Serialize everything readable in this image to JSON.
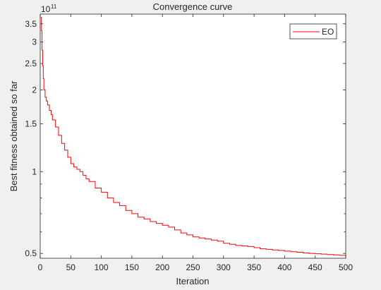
{
  "chart_data": {
    "type": "line",
    "title": "Convergence curve",
    "xlabel": "Iteration",
    "ylabel": "Best fitness obtained so far",
    "yscale": "log",
    "y_exponent_label": "10",
    "y_exponent_power": "11",
    "xlim": [
      0,
      500
    ],
    "ylim": [
      48000000000.0,
      380000000000.0
    ],
    "x_ticks": [
      0,
      50,
      100,
      150,
      200,
      250,
      300,
      350,
      400,
      450,
      500
    ],
    "x_tick_labels": [
      "0",
      "50",
      "100",
      "150",
      "200",
      "250",
      "300",
      "350",
      "400",
      "450",
      "500"
    ],
    "y_ticks": [
      50000000000.0,
      100000000000.0,
      150000000000.0,
      200000000000.0,
      250000000000.0,
      300000000000.0,
      350000000000.0
    ],
    "y_tick_labels": [
      "0.5",
      "1",
      "1.5",
      "2",
      "2.5",
      "3",
      "3.5"
    ],
    "y_minor_ticks": [
      60000000000.0,
      70000000000.0,
      80000000000.0,
      90000000000.0
    ],
    "legend_position": "top-right",
    "series": [
      {
        "name": "EO",
        "color": "#ff0000",
        "x": [
          1,
          2,
          3,
          4,
          5,
          6,
          8,
          10,
          12,
          15,
          18,
          20,
          25,
          30,
          35,
          40,
          45,
          50,
          55,
          60,
          65,
          70,
          75,
          80,
          90,
          100,
          110,
          120,
          130,
          140,
          150,
          160,
          170,
          180,
          190,
          200,
          210,
          220,
          230,
          240,
          250,
          260,
          270,
          280,
          290,
          300,
          320,
          340,
          360,
          380,
          400,
          420,
          440,
          460,
          480,
          500
        ],
        "y": [
          370000000000.0,
          330000000000.0,
          280000000000.0,
          245000000000.0,
          220000000000.0,
          200000000000.0,
          188000000000.0,
          182000000000.0,
          176000000000.0,
          168000000000.0,
          162000000000.0,
          155000000000.0,
          146000000000.0,
          136000000000.0,
          127000000000.0,
          120000000000.0,
          113000000000.0,
          107000000000.0,
          104000000000.0,
          102000000000.0,
          100000000000.0,
          97000000000.0,
          94000000000.0,
          92000000000.0,
          87000000000.0,
          84000000000.0,
          80000000000.0,
          77000000000.0,
          75000000000.0,
          72000000000.0,
          70000000000.0,
          68000000000.0,
          67000000000.0,
          65500000000.0,
          64500000000.0,
          63500000000.0,
          62500000000.0,
          61000000000.0,
          59500000000.0,
          58500000000.0,
          57500000000.0,
          57000000000.0,
          56500000000.0,
          56000000000.0,
          55500000000.0,
          54500000000.0,
          53500000000.0,
          53000000000.0,
          52000000000.0,
          51500000000.0,
          51000000000.0,
          50500000000.0,
          50000000000.0,
          49700000000.0,
          49400000000.0,
          49000000000.0
        ]
      }
    ]
  }
}
